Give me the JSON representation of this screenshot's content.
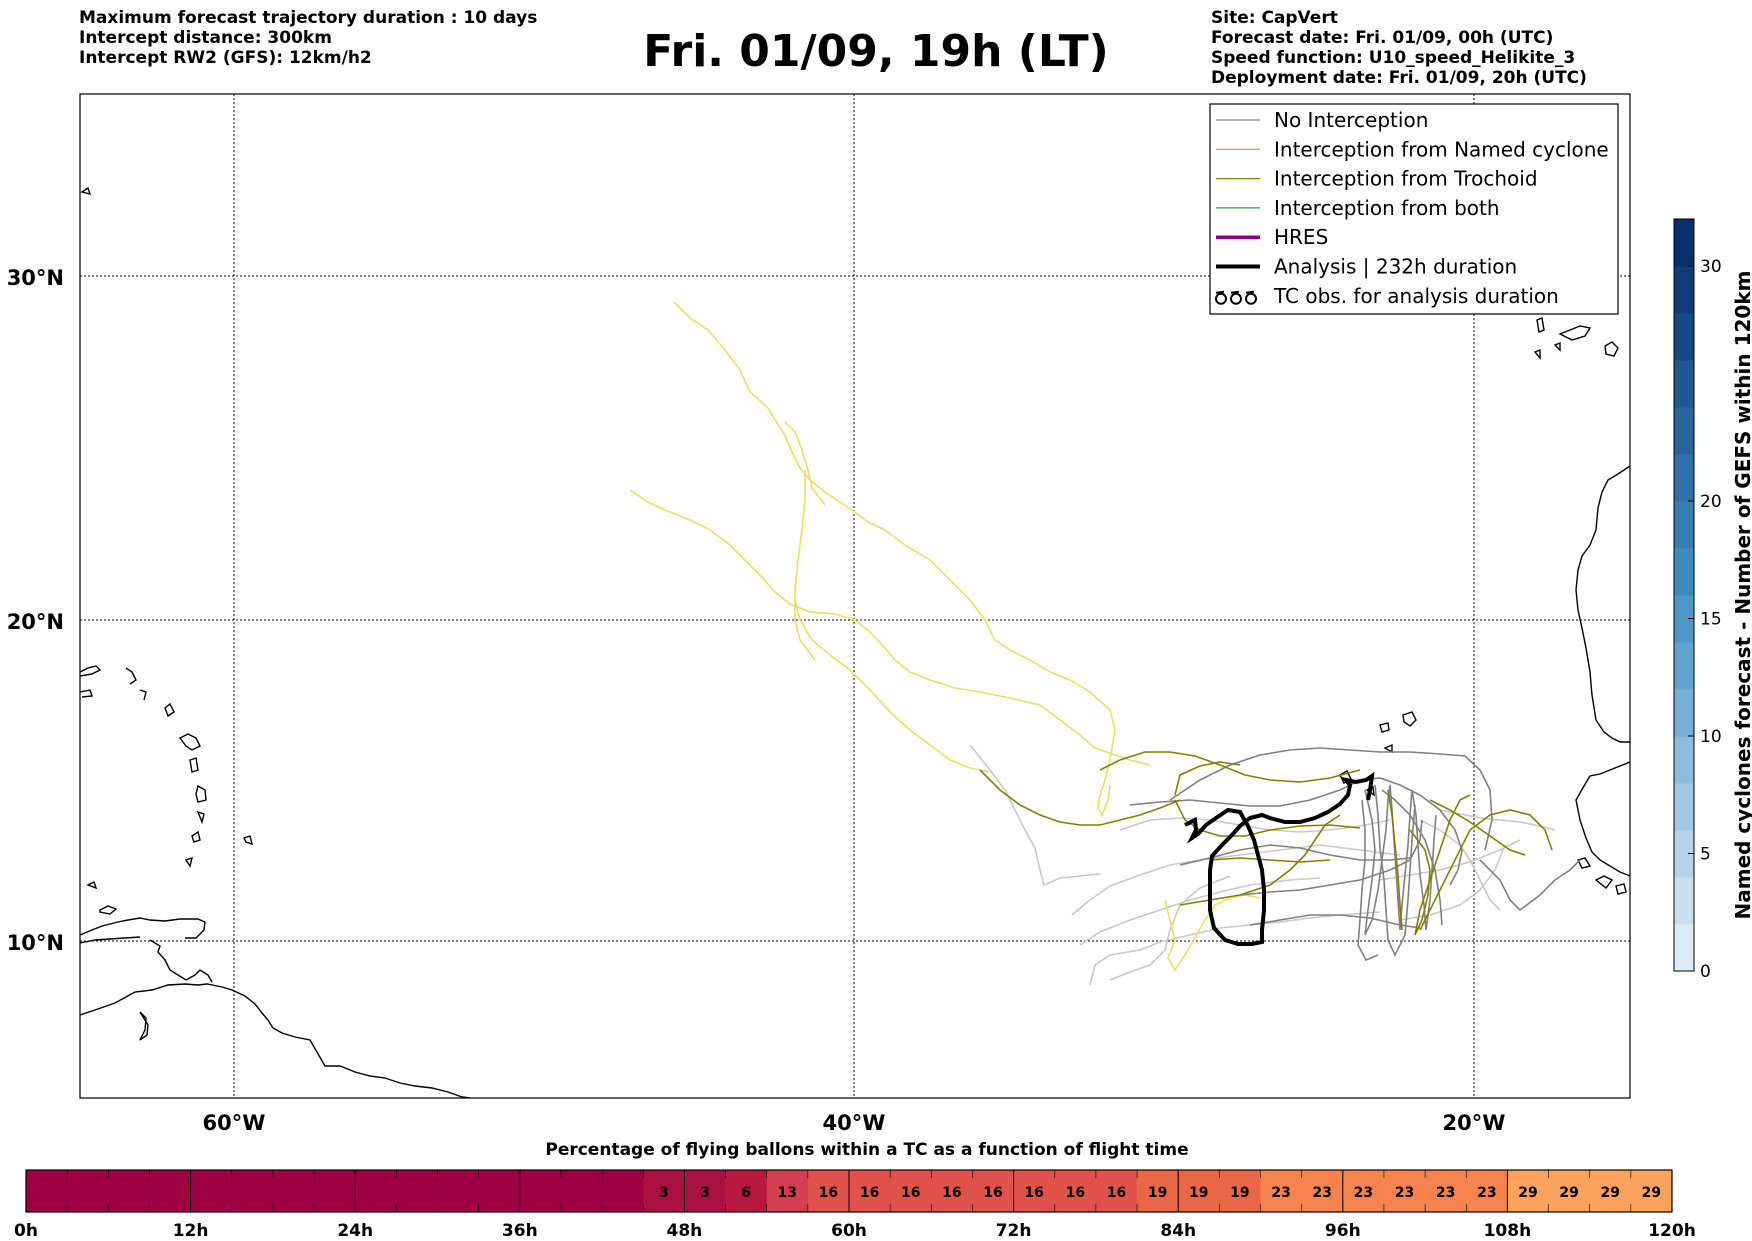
{
  "header": {
    "left_lines": [
      "Maximum forecast trajectory duration : 10 days",
      "Intercept distance: 300km",
      "Intercept RW2 (GFS):  12km/h2"
    ],
    "title": "Fri. 01/09, 19h (LT)",
    "right_lines": [
      "Site: CapVert",
      "Forecast date: Fri. 01/09, 00h (UTC)",
      "Speed function: U10_speed_Helikite_3",
      "Deployment date: Fri. 01/09, 20h (UTC)"
    ]
  },
  "map": {
    "lat_labels": [
      "30°N",
      "20°N",
      "10°N"
    ],
    "lon_labels": [
      "60°W",
      "40°W",
      "20°W"
    ],
    "colors": {
      "no_interception": "#808080",
      "named_cyclone": "#ff7f50",
      "trochoid": "#808000",
      "both": "#2ca02c",
      "hres": "#8b008b",
      "analysis": "#000000",
      "ensemble_light": "#c8c8c8",
      "ensemble_yellow": "#e8e060"
    }
  },
  "legend": {
    "items": [
      {
        "label": "No Interception",
        "color": "#808080",
        "width": 1.2
      },
      {
        "label": "Interception from Named cyclone",
        "color": "#ff7f50",
        "width": 1.2
      },
      {
        "label": "Interception from Trochoid",
        "color": "#808000",
        "width": 1.2
      },
      {
        "label": "Interception from both",
        "color": "#2ca02c",
        "width": 1.2
      },
      {
        "label": "HRES",
        "color": "#8b008b",
        "width": 3.5
      },
      {
        "label": "Analysis | 232h duration",
        "color": "#000000",
        "width": 4
      },
      {
        "label": "TC obs. for analysis duration",
        "color": "#000000",
        "width": 0,
        "icon": "cyclone-symbol-icon"
      }
    ]
  },
  "colorbar_right": {
    "label": "Named cyclones forecast - Number of GEFS within 120km",
    "ticks": [
      "0",
      "5",
      "10",
      "15",
      "20",
      "30"
    ],
    "tick_values": [
      0,
      5,
      10,
      15,
      20,
      30
    ],
    "max": 32
  },
  "bottom_bar": {
    "title": "Percentage of flying ballons within a TC as a function of flight time",
    "time_ticks": [
      "0h",
      "12h",
      "24h",
      "36h",
      "48h",
      "60h",
      "72h",
      "84h",
      "96h",
      "108h",
      "120h"
    ],
    "step_hours": 3,
    "cells": [
      0,
      0,
      0,
      0,
      0,
      0,
      0,
      0,
      0,
      0,
      0,
      0,
      0,
      0,
      0,
      3,
      3,
      6,
      13,
      16,
      16,
      16,
      16,
      16,
      16,
      16,
      16,
      19,
      19,
      19,
      23,
      23,
      23,
      23,
      23,
      23,
      29,
      29,
      29,
      29
    ],
    "labels": [
      "",
      "",
      "",
      "",
      "",
      "",
      "",
      "",
      "",
      "",
      "",
      "",
      "",
      "",
      "",
      "3",
      "3",
      "6",
      "13",
      "16",
      "16",
      "16",
      "16",
      "16",
      "16",
      "16",
      "16",
      "19",
      "19",
      "19",
      "23",
      "23",
      "23",
      "23",
      "23",
      "23",
      "29",
      "29",
      "29",
      "29"
    ]
  }
}
